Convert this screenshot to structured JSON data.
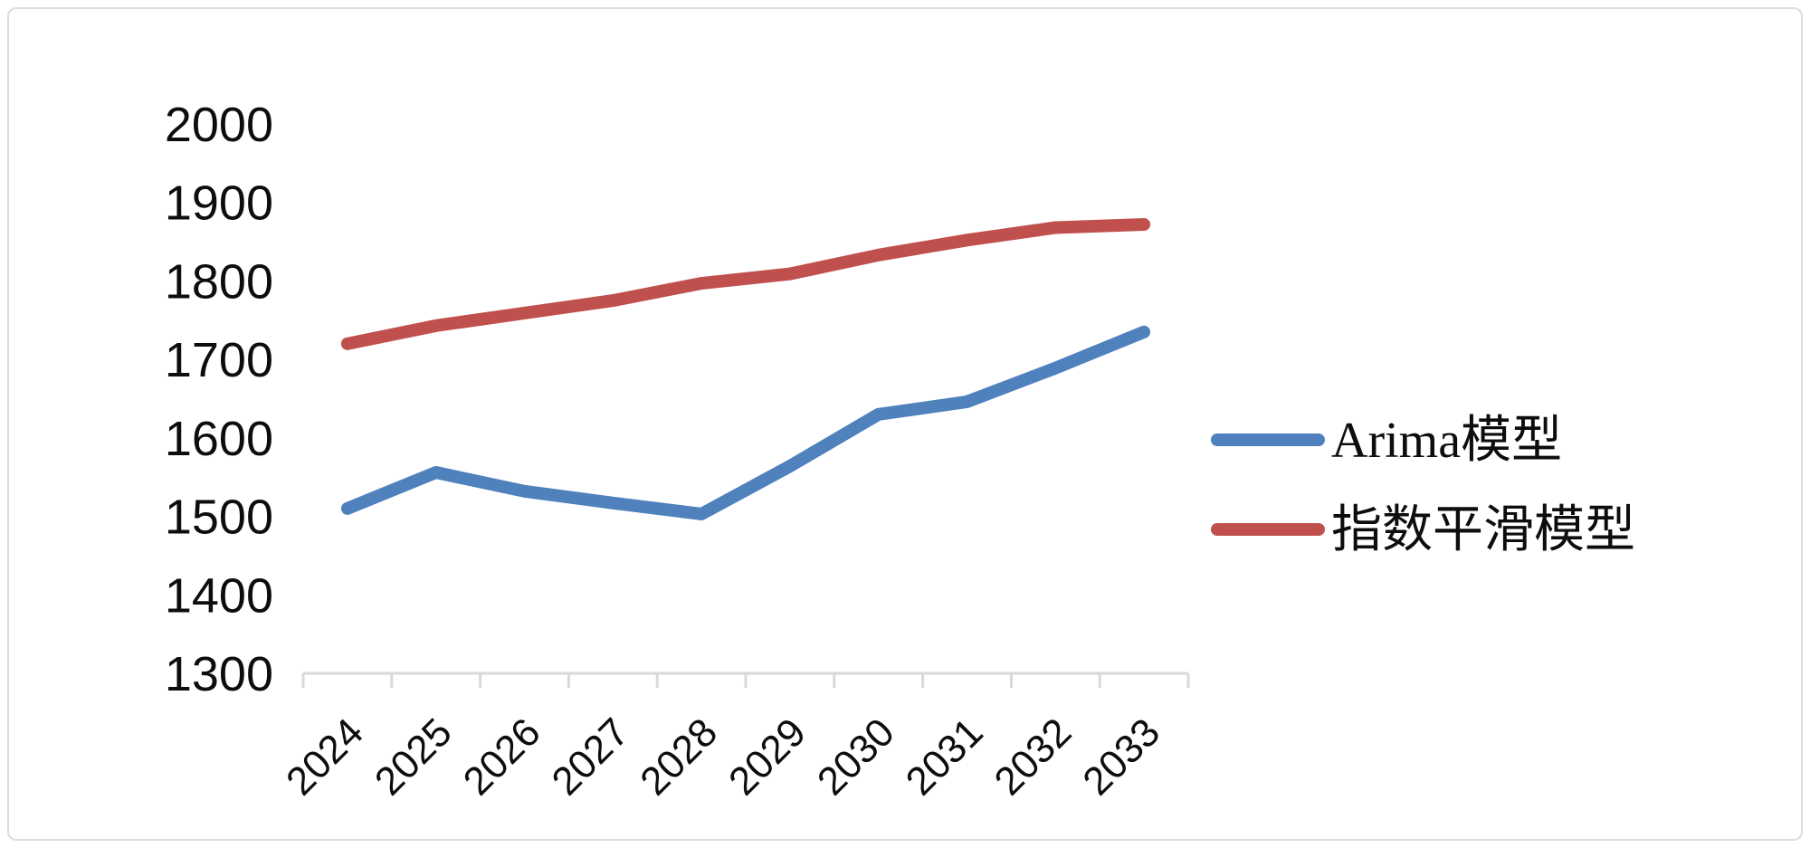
{
  "chart_data": {
    "type": "line",
    "title": "",
    "xlabel": "",
    "ylabel": "",
    "categories": [
      "2024",
      "2025",
      "2026",
      "2027",
      "2028",
      "2029",
      "2030",
      "2031",
      "2032",
      "2033"
    ],
    "series": [
      {
        "name": "Arima模型",
        "color": "#4F81BD",
        "values": [
          1510,
          1556,
          1532,
          1517,
          1503,
          1564,
          1630,
          1646,
          1689,
          1735
        ]
      },
      {
        "name": "指数平滑模型",
        "color": "#C0504D",
        "values": [
          1720,
          1743,
          1759,
          1775,
          1797,
          1809,
          1833,
          1852,
          1868,
          1872
        ]
      }
    ],
    "ylim": [
      1300,
      2000
    ],
    "ytick_step": 100,
    "ytick_labels": [
      "1300",
      "1400",
      "1500",
      "1600",
      "1700",
      "1800",
      "1900",
      "2000"
    ],
    "grid": false,
    "legend_position": "right",
    "x_label_rotation_deg": -45,
    "axis_color": "#d9d9d9",
    "text_color": "#0d0d0d",
    "line_width": 14
  }
}
